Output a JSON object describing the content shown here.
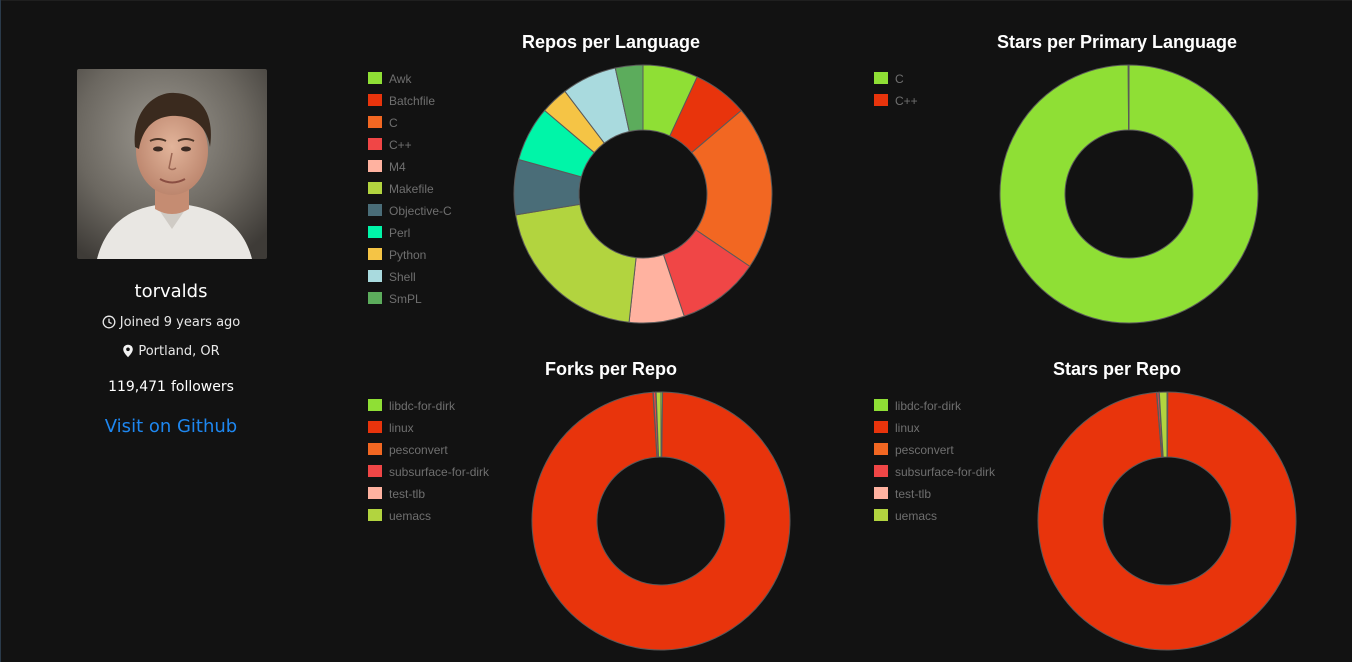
{
  "profile": {
    "username": "torvalds",
    "joined": "Joined 9 years ago",
    "location": "Portland, OR",
    "followers_count": "119,471",
    "followers_label": "followers",
    "github_link": "Visit on Github",
    "icons": {
      "clock": "clock-icon",
      "location": "location-pin-icon"
    }
  },
  "charts": [
    {
      "id": "repos-per-language",
      "title": "Repos per Language",
      "legend": [
        "Awk",
        "Batchfile",
        "C",
        "C++",
        "M4",
        "Makefile",
        "Objective-C",
        "Perl",
        "Python",
        "Shell",
        "SmPL"
      ]
    },
    {
      "id": "stars-per-primary-language",
      "title": "Stars per Primary Language",
      "legend": [
        "C",
        "C++"
      ]
    },
    {
      "id": "forks-per-repo",
      "title": "Forks per Repo",
      "legend": [
        "libdc-for-dirk",
        "linux",
        "pesconvert",
        "subsurface-for-dirk",
        "test-tlb",
        "uemacs"
      ]
    },
    {
      "id": "stars-per-repo",
      "title": "Stars per Repo",
      "legend": [
        "libdc-for-dirk",
        "linux",
        "pesconvert",
        "subsurface-for-dirk",
        "test-tlb",
        "uemacs"
      ]
    }
  ],
  "chart_data": [
    {
      "type": "pie",
      "title": "Repos per Language",
      "categories": [
        "Awk",
        "Batchfile",
        "C",
        "C++",
        "M4",
        "Makefile",
        "Objective-C",
        "Perl",
        "Python",
        "Shell",
        "SmPL"
      ],
      "values": [
        1,
        1,
        3,
        1.5,
        1,
        3,
        1,
        1,
        0.5,
        1,
        0.5
      ],
      "colors": [
        "#8fdf35",
        "#e8340c",
        "#f26722",
        "#f04646",
        "#ffb2a0",
        "#b2d43f",
        "#4a6d78",
        "#00f5a8",
        "#f5c445",
        "#a9dade",
        "#5cac5c"
      ]
    },
    {
      "type": "pie",
      "title": "Stars per Primary Language",
      "categories": [
        "C",
        "C++"
      ],
      "values": [
        99.9,
        0.1
      ],
      "colors": [
        "#8fdf35",
        "#e8340c"
      ]
    },
    {
      "type": "pie",
      "title": "Forks per Repo",
      "categories": [
        "libdc-for-dirk",
        "linux",
        "pesconvert",
        "subsurface-for-dirk",
        "test-tlb",
        "uemacs"
      ],
      "values": [
        0.2,
        98.8,
        0.05,
        0.3,
        0.05,
        0.6
      ],
      "colors": [
        "#8fdf35",
        "#e8340c",
        "#f26722",
        "#f04646",
        "#ffb2a0",
        "#b2d43f"
      ]
    },
    {
      "type": "pie",
      "title": "Stars per Repo",
      "categories": [
        "libdc-for-dirk",
        "linux",
        "pesconvert",
        "subsurface-for-dirk",
        "test-tlb",
        "uemacs"
      ],
      "values": [
        0.1,
        98.6,
        0.05,
        0.25,
        0.05,
        0.95
      ],
      "colors": [
        "#8fdf35",
        "#e8340c",
        "#f26722",
        "#f04646",
        "#ffb2a0",
        "#b2d43f"
      ]
    }
  ]
}
